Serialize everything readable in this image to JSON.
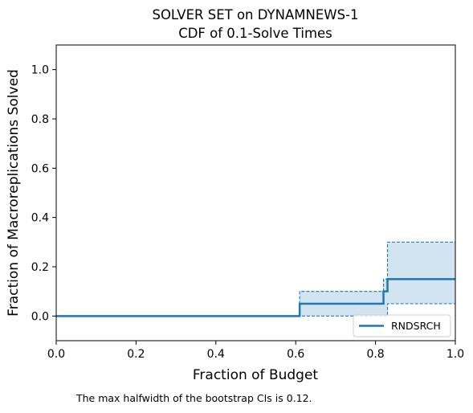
{
  "chart_data": {
    "type": "line",
    "title_line1": "SOLVER SET on DYNAMNEWS-1",
    "title_line2": "CDF of 0.1-Solve Times",
    "xlabel": "Fraction of Budget",
    "ylabel": "Fraction of Macroreplications Solved",
    "xlim": [
      0,
      1.0
    ],
    "ylim": [
      -0.1,
      1.1
    ],
    "xticks": [
      "0.0",
      "0.2",
      "0.4",
      "0.6",
      "0.8",
      "1.0"
    ],
    "yticks": [
      "0.0",
      "0.2",
      "0.4",
      "0.6",
      "0.8",
      "1.0"
    ],
    "grid": false,
    "legend_position": "bottom-right",
    "series": [
      {
        "name": "RNDSRCH",
        "color": "#1f77b4",
        "style": "step",
        "x": [
          0,
          0.61,
          0.82,
          0.83,
          1.0
        ],
        "y": [
          0,
          0.05,
          0.1,
          0.15,
          0.15
        ],
        "ci_lower": [
          0,
          0,
          0,
          0.05,
          0.05
        ],
        "ci_upper": [
          0,
          0.1,
          0.15,
          0.3,
          0.3
        ]
      }
    ]
  },
  "footnote": "The max halfwidth of the bootstrap CIs is 0.12."
}
